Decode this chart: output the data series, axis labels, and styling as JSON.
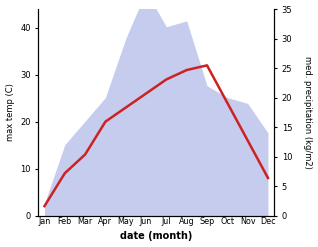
{
  "months": [
    "Jan",
    "Feb",
    "Mar",
    "Apr",
    "May",
    "Jun",
    "Jul",
    "Aug",
    "Sep",
    "Oct",
    "Nov",
    "Dec"
  ],
  "month_positions": [
    0,
    1,
    2,
    3,
    4,
    5,
    6,
    7,
    8,
    9,
    10,
    11
  ],
  "max_temp": [
    2,
    9,
    13,
    20,
    23,
    26,
    29,
    31,
    32,
    24,
    16,
    8
  ],
  "precipitation": [
    2,
    12,
    16,
    20,
    30,
    38,
    32,
    33,
    22,
    20,
    19,
    14
  ],
  "temp_color": "#cc2222",
  "precip_fill_color": "#c5ccee",
  "temp_ylim": [
    0,
    44
  ],
  "precip_ylim": [
    0,
    35
  ],
  "temp_yticks": [
    0,
    10,
    20,
    30,
    40
  ],
  "precip_yticks": [
    0,
    5,
    10,
    15,
    20,
    25,
    30,
    35
  ],
  "ylabel_left": "max temp (C)",
  "ylabel_right": "med. precipitation (kg/m2)",
  "xlabel": "date (month)",
  "line_width": 1.8,
  "background_color": "#ffffff"
}
